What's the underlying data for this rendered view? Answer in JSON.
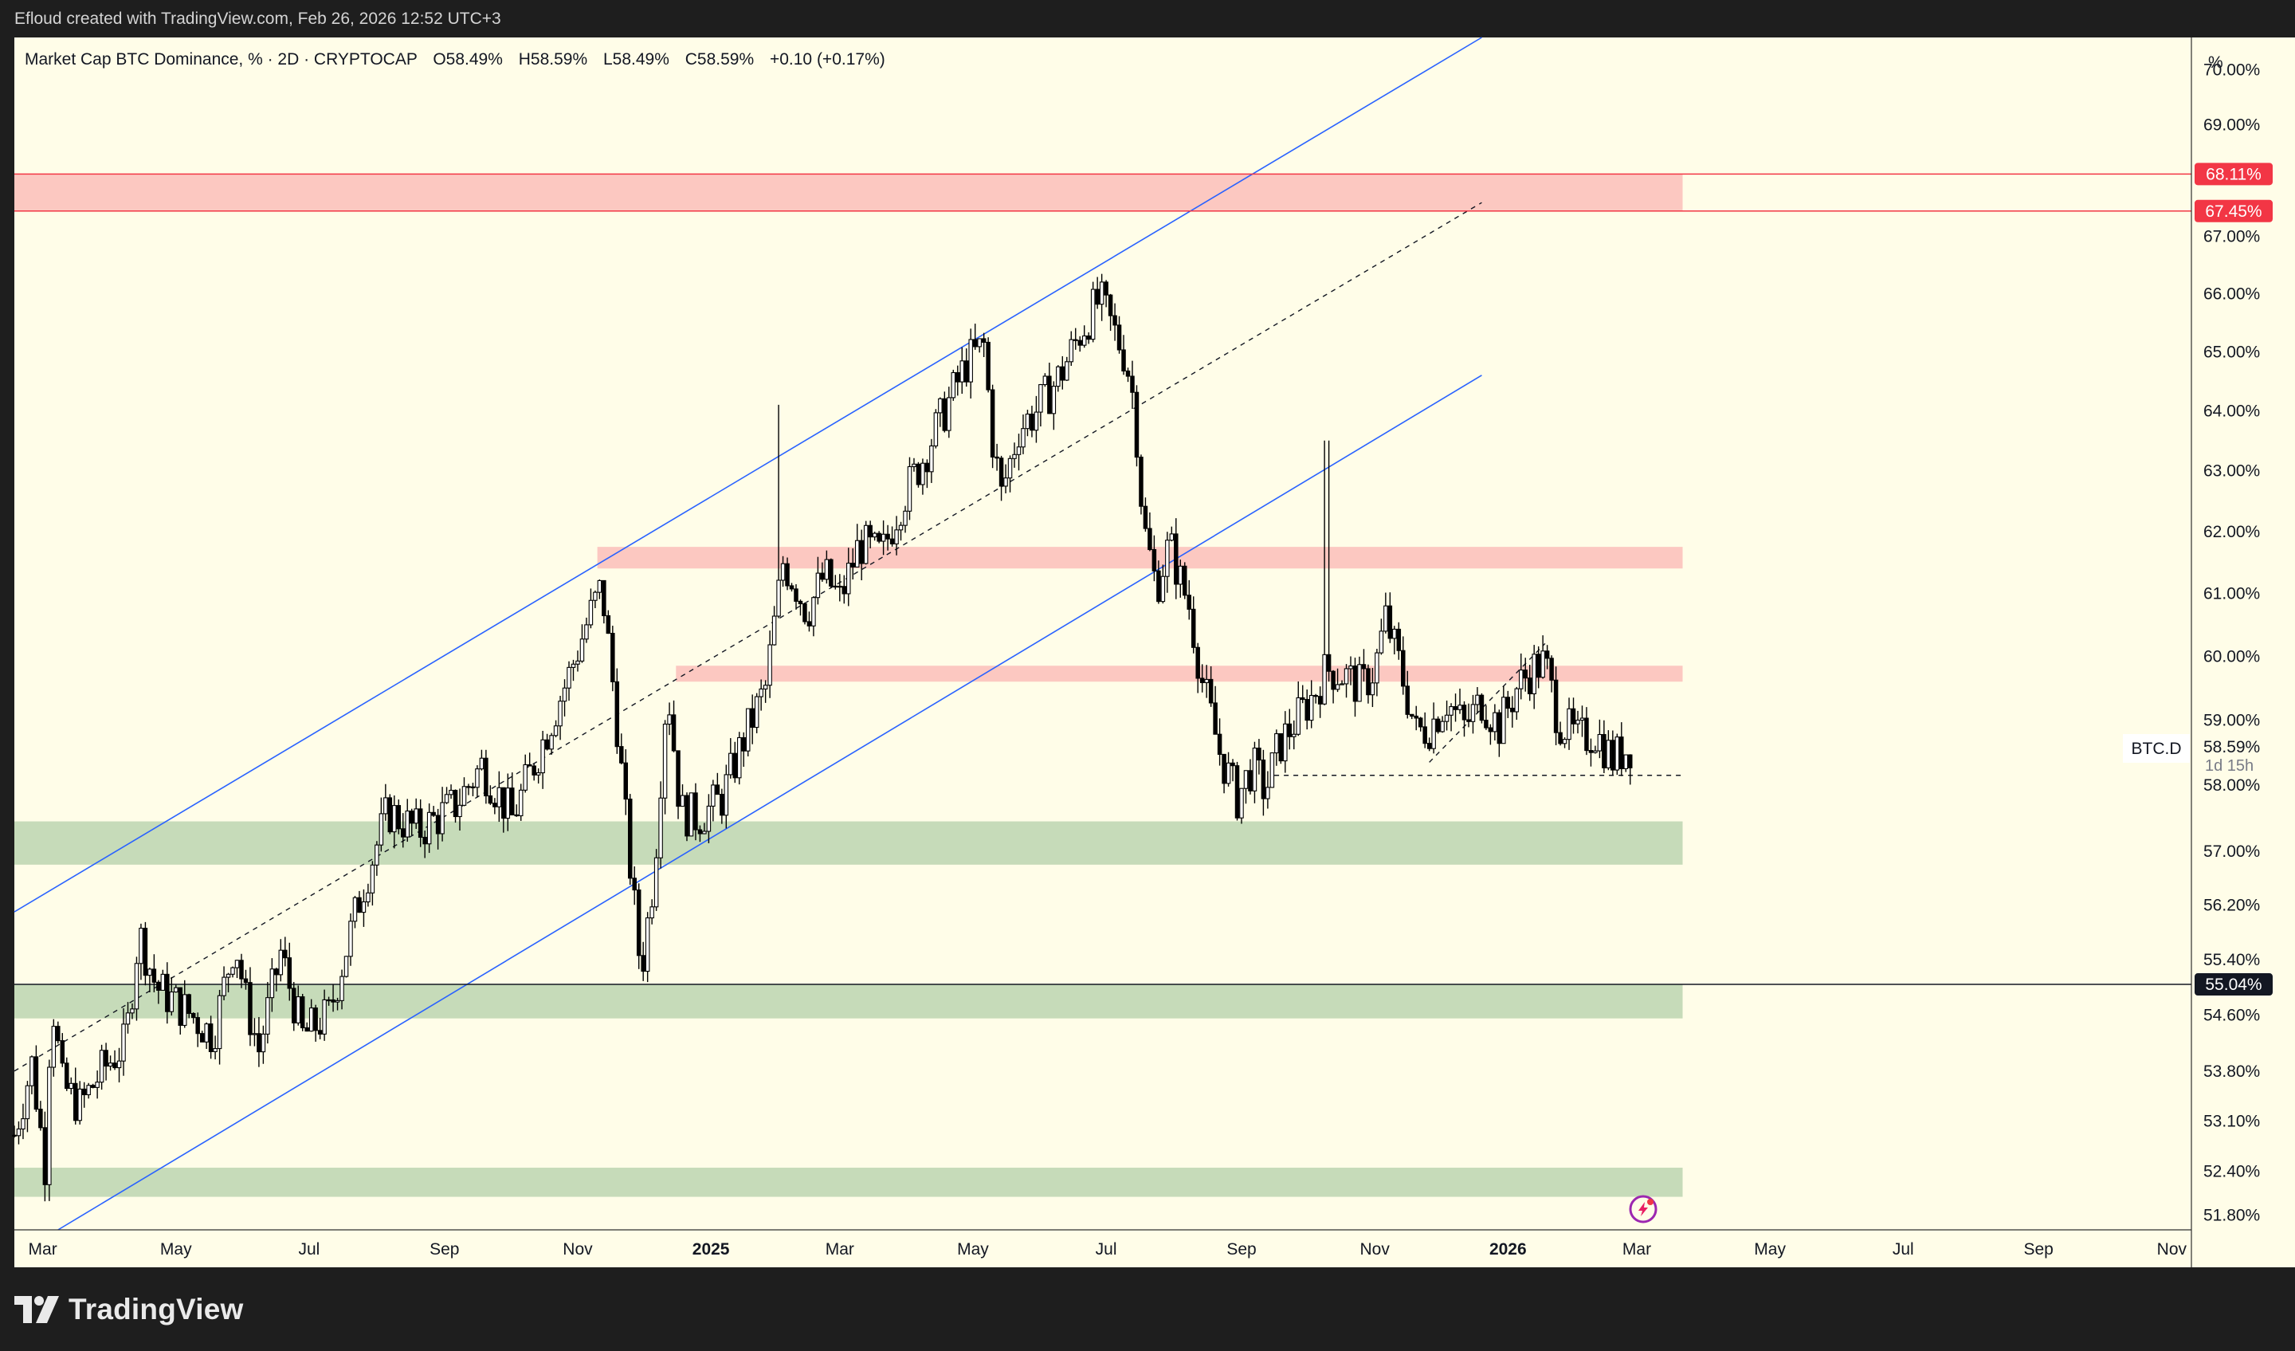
{
  "header": {
    "attribution": "Efloud created with TradingView.com, Feb 26, 2026 12:52 UTC+3"
  },
  "legend": {
    "symbol": "Market Cap BTC Dominance, % · 2D · CRYPTOCAP",
    "o": "O58.49%",
    "h": "H58.59%",
    "l": "L58.49%",
    "c": "C58.59%",
    "change": "+0.10 (+0.17%)"
  },
  "price_axis": {
    "unit": "%",
    "ticks": [
      "70.00%",
      "69.00%",
      "67.00%",
      "66.00%",
      "65.00%",
      "64.00%",
      "63.00%",
      "62.00%",
      "61.00%",
      "60.00%",
      "59.00%",
      "58.00%",
      "57.00%",
      "56.20%",
      "55.40%",
      "54.60%",
      "53.80%",
      "53.10%",
      "52.40%",
      "51.80%"
    ],
    "tags": [
      {
        "text": "68.11%",
        "color": "#f23645"
      },
      {
        "text": "67.45%",
        "color": "#f23645"
      },
      {
        "text": "55.04%",
        "color": "#131722"
      }
    ],
    "last_price": "58.59%",
    "countdown": "1d 15h",
    "symbol_label": "BTC.D"
  },
  "time_axis": {
    "ticks": [
      "Mar",
      "May",
      "Jul",
      "Sep",
      "Nov",
      "2025",
      "Mar",
      "May",
      "Jul",
      "Sep",
      "Nov",
      "2026",
      "Mar",
      "May",
      "Jul",
      "Sep",
      "Nov"
    ]
  },
  "brand": {
    "name": "TradingView"
  },
  "colors": {
    "background": "#fffde8",
    "bull_candle": "#ffffff",
    "bear_candle": "#000000",
    "channel": "#2962ff",
    "resistance_zone": "#fcc8c1",
    "support_zone": "#c6dbb9",
    "level_line": "#f23645"
  },
  "chart_data": {
    "type": "candlestick",
    "title": "Market Cap BTC Dominance, % · 2D · CRYPTOCAP",
    "ylabel": "%",
    "scale": "log",
    "ylim": [
      51.6,
      70.6
    ],
    "xlim": [
      "2024-02-17",
      "2026-11-10"
    ],
    "series": [
      {
        "name": "BTC.D",
        "anchors": [
          [
            "2024-02-17",
            52.9
          ],
          [
            "2024-02-25",
            53.9
          ],
          [
            "2024-03-02",
            52.5
          ],
          [
            "2024-03-05",
            54.9
          ],
          [
            "2024-03-10",
            53.6
          ],
          [
            "2024-03-18",
            53.3
          ],
          [
            "2024-03-28",
            53.8
          ],
          [
            "2024-04-08",
            54.2
          ],
          [
            "2024-04-14",
            55.8
          ],
          [
            "2024-04-22",
            55.0
          ],
          [
            "2024-05-08",
            54.6
          ],
          [
            "2024-05-18",
            54.3
          ],
          [
            "2024-05-28",
            55.7
          ],
          [
            "2024-06-02",
            54.8
          ],
          [
            "2024-06-08",
            54.1
          ],
          [
            "2024-06-18",
            55.5
          ],
          [
            "2024-06-28",
            54.3
          ],
          [
            "2024-07-10",
            54.6
          ],
          [
            "2024-07-25",
            56.4
          ],
          [
            "2024-08-06",
            57.6
          ],
          [
            "2024-08-20",
            57.3
          ],
          [
            "2024-09-06",
            57.7
          ],
          [
            "2024-09-18",
            58.3
          ],
          [
            "2024-10-02",
            57.5
          ],
          [
            "2024-10-14",
            58.5
          ],
          [
            "2024-10-28",
            59.7
          ],
          [
            "2024-11-06",
            60.6
          ],
          [
            "2024-11-12",
            61.1
          ],
          [
            "2024-11-18",
            59.3
          ],
          [
            "2024-11-24",
            57.1
          ],
          [
            "2024-11-30",
            55.2
          ],
          [
            "2024-12-06",
            56.7
          ],
          [
            "2024-12-12",
            59.6
          ],
          [
            "2024-12-18",
            57.6
          ],
          [
            "2024-12-26",
            57.5
          ],
          [
            "2025-01-06",
            57.8
          ],
          [
            "2025-01-16",
            58.7
          ],
          [
            "2025-01-26",
            59.5
          ],
          [
            "2025-02-03",
            61.5
          ],
          [
            "2025-02-08",
            61.2
          ],
          [
            "2025-02-14",
            60.7
          ],
          [
            "2025-02-22",
            61.3
          ],
          [
            "2025-03-01",
            60.9
          ],
          [
            "2025-03-10",
            61.8
          ],
          [
            "2025-03-20",
            61.6
          ],
          [
            "2025-03-28",
            62.4
          ],
          [
            "2025-04-08",
            63.2
          ],
          [
            "2025-04-18",
            64.0
          ],
          [
            "2025-04-28",
            64.8
          ],
          [
            "2025-05-06",
            65.1
          ],
          [
            "2025-05-10",
            63.5
          ],
          [
            "2025-05-14",
            62.6
          ],
          [
            "2025-05-22",
            63.7
          ],
          [
            "2025-05-30",
            64.0
          ],
          [
            "2025-06-10",
            64.6
          ],
          [
            "2025-06-20",
            65.4
          ],
          [
            "2025-06-28",
            65.9
          ],
          [
            "2025-07-04",
            65.4
          ],
          [
            "2025-07-10",
            64.9
          ],
          [
            "2025-07-14",
            64.1
          ],
          [
            "2025-07-18",
            62.1
          ],
          [
            "2025-07-24",
            61.1
          ],
          [
            "2025-07-30",
            61.8
          ],
          [
            "2025-08-04",
            61.2
          ],
          [
            "2025-08-08",
            60.8
          ],
          [
            "2025-08-14",
            59.6
          ],
          [
            "2025-08-22",
            58.5
          ],
          [
            "2025-08-30",
            57.8
          ],
          [
            "2025-09-06",
            58.3
          ],
          [
            "2025-09-12",
            57.9
          ],
          [
            "2025-09-18",
            58.6
          ],
          [
            "2025-09-26",
            59.0
          ],
          [
            "2025-10-04",
            59.4
          ],
          [
            "2025-10-10",
            59.8
          ],
          [
            "2025-10-18",
            59.7
          ],
          [
            "2025-10-26",
            59.5
          ],
          [
            "2025-11-01",
            59.8
          ],
          [
            "2025-11-06",
            60.6
          ],
          [
            "2025-11-12",
            59.9
          ],
          [
            "2025-11-20",
            58.8
          ],
          [
            "2025-11-26",
            58.9
          ],
          [
            "2025-12-04",
            59.3
          ],
          [
            "2025-12-12",
            58.9
          ],
          [
            "2025-12-20",
            59.3
          ],
          [
            "2025-12-28",
            58.9
          ],
          [
            "2026-01-05",
            59.5
          ],
          [
            "2026-01-12",
            59.8
          ],
          [
            "2026-01-18",
            59.9
          ],
          [
            "2026-01-24",
            59.0
          ],
          [
            "2026-02-02",
            58.7
          ],
          [
            "2026-02-10",
            58.8
          ],
          [
            "2026-02-18",
            58.4
          ],
          [
            "2026-02-26",
            58.59
          ]
        ],
        "spikes": [
          [
            "2025-02-01",
            64.1
          ],
          [
            "2025-10-10",
            63.5
          ]
        ]
      }
    ],
    "drawings": [
      {
        "type": "trend_line",
        "name": "channel-upper",
        "from": [
          "2024-02-17",
          56.1
        ],
        "to": [
          "2025-12-20",
          70.6
        ]
      },
      {
        "type": "trend_line",
        "name": "channel-lower",
        "from": [
          "2024-03-08",
          51.6
        ],
        "to": [
          "2025-12-20",
          64.6
        ]
      },
      {
        "type": "trend_line",
        "name": "channel-median",
        "style": "dashed",
        "from": [
          "2024-02-17",
          53.8
        ],
        "to": [
          "2025-12-20",
          67.6
        ]
      },
      {
        "type": "zone",
        "name": "resistance-top",
        "y": [
          67.45,
          68.11
        ],
        "x": [
          "2024-02-17",
          "2026-03-22"
        ]
      },
      {
        "type": "zone",
        "name": "resistance-mid",
        "y": [
          61.4,
          61.75
        ],
        "x": [
          "2024-11-10",
          "2026-03-22"
        ]
      },
      {
        "type": "zone",
        "name": "resistance-low",
        "y": [
          59.6,
          59.85
        ],
        "x": [
          "2024-12-16",
          "2026-03-22"
        ]
      },
      {
        "type": "zone",
        "name": "support-high",
        "y": [
          56.8,
          57.45
        ],
        "x": [
          "2024-02-17",
          "2026-03-22"
        ]
      },
      {
        "type": "zone",
        "name": "support-mid",
        "y": [
          54.55,
          55.04
        ],
        "x": [
          "2024-02-17",
          "2026-03-22"
        ]
      },
      {
        "type": "zone",
        "name": "support-low",
        "y": [
          52.05,
          52.45
        ],
        "x": [
          "2024-02-17",
          "2026-03-22"
        ]
      },
      {
        "type": "horizontal_line",
        "name": "level-55",
        "y": 55.04
      },
      {
        "type": "horizontal_line",
        "name": "level-68-11",
        "y": 68.11,
        "color": "#f23645"
      },
      {
        "type": "horizontal_line",
        "name": "level-67-45",
        "y": 67.45,
        "color": "#f23645"
      },
      {
        "type": "trend_line",
        "name": "local-support",
        "style": "dashed",
        "from": [
          "2025-09-16",
          58.15
        ],
        "to": [
          "2026-03-22",
          58.15
        ]
      },
      {
        "type": "trend_line",
        "name": "local-rising",
        "style": "dashed",
        "from": [
          "2025-11-26",
          58.35
        ],
        "to": [
          "2026-01-18",
          60.2
        ]
      }
    ]
  }
}
